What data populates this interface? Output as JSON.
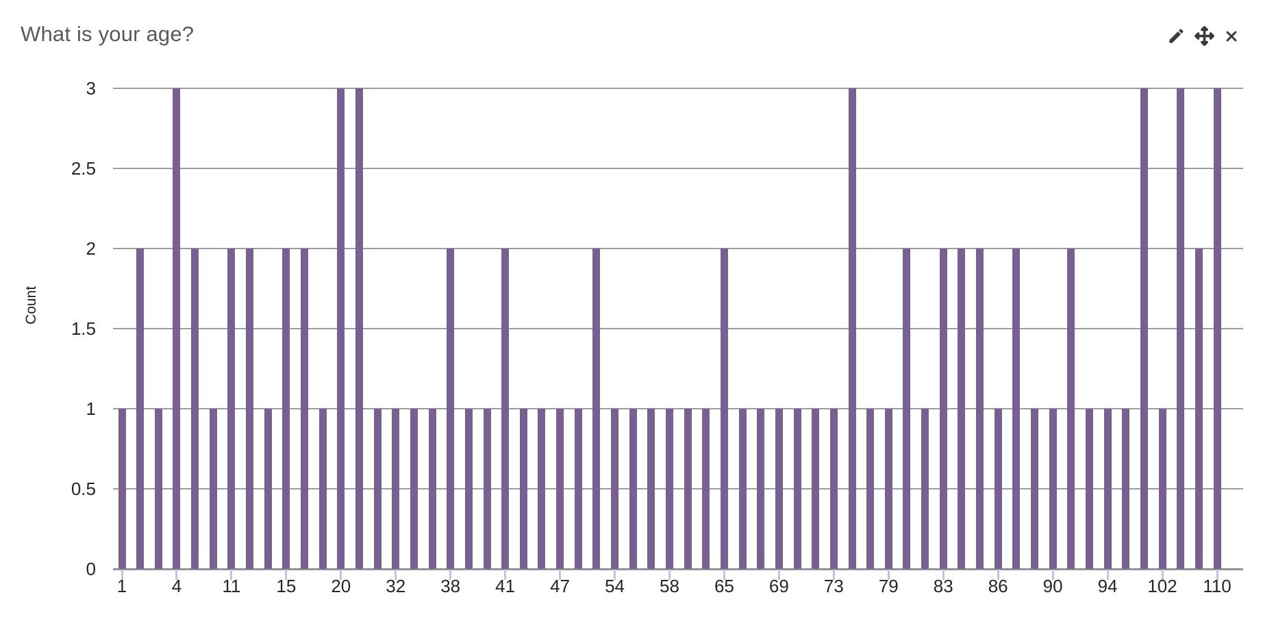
{
  "header": {
    "title": "What is your age?",
    "actions": [
      {
        "name": "edit",
        "icon": "pencil-icon"
      },
      {
        "name": "move",
        "icon": "move-icon"
      },
      {
        "name": "close",
        "icon": "close-icon"
      }
    ]
  },
  "chart_data": {
    "type": "bar",
    "title": "What is your age?",
    "xlabel": "",
    "ylabel": "Count",
    "ylim": [
      0,
      3
    ],
    "yticks": [
      0,
      0.5,
      1,
      1.5,
      2,
      2.5,
      3
    ],
    "grid": true,
    "legend": false,
    "bar_color": "#786093",
    "gridline_color": "#9c9c9c",
    "tick_mark_color": "#b8c9d9",
    "x_labeled_every": 3,
    "x_tick_labels": [
      "1",
      "4",
      "11",
      "15",
      "20",
      "32",
      "38",
      "41",
      "47",
      "54",
      "58",
      "65",
      "69",
      "73",
      "79",
      "83",
      "86",
      "90",
      "94",
      "102",
      "110"
    ],
    "values": [
      1,
      2,
      1,
      3,
      2,
      1,
      2,
      2,
      1,
      2,
      2,
      1,
      3,
      3,
      1,
      1,
      1,
      1,
      2,
      1,
      1,
      2,
      1,
      1,
      1,
      1,
      2,
      1,
      1,
      1,
      1,
      1,
      1,
      2,
      1,
      1,
      1,
      1,
      1,
      1,
      3,
      1,
      1,
      2,
      1,
      2,
      2,
      2,
      1,
      2,
      1,
      1,
      2,
      1,
      1,
      1,
      3,
      1,
      3,
      2,
      3
    ]
  }
}
